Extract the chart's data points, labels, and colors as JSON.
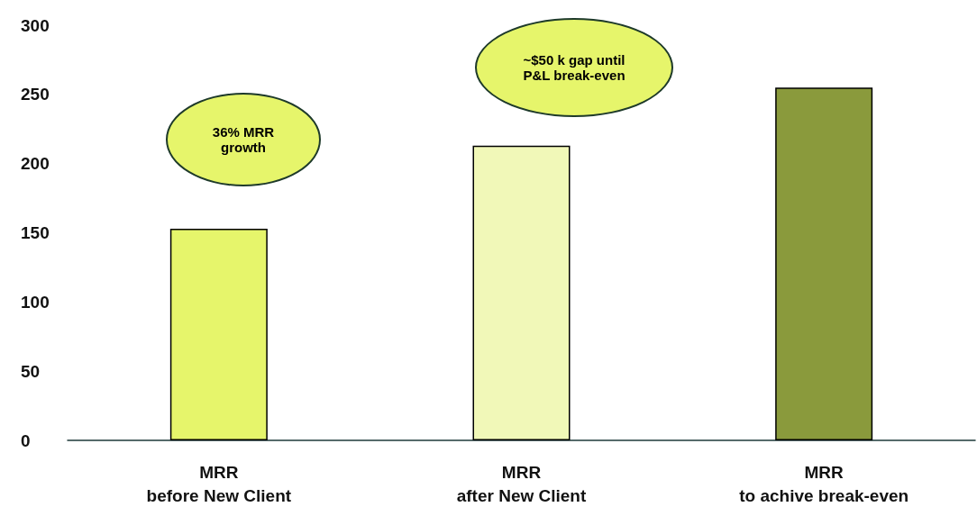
{
  "chart_data": {
    "type": "bar",
    "categories": [
      "MRR\nbefore New Client",
      "MRR\nafter New Client",
      "MRR\nto achive break-even"
    ],
    "values": [
      153,
      213,
      255
    ],
    "colors": [
      "#e6f56b",
      "#f1f8b8",
      "#8a9a3c"
    ],
    "ylim": [
      0,
      300
    ],
    "yticks": [
      0,
      50,
      100,
      150,
      200,
      250,
      300
    ],
    "grid": false,
    "annotations": [
      "36% MRR\ngrowth",
      "~$50 k gap until\nP&L break-even"
    ]
  }
}
